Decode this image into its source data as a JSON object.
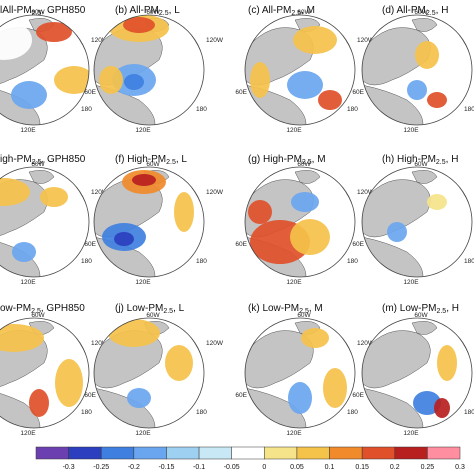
{
  "panels": [
    {
      "id": "a",
      "prefix": "",
      "group": "All",
      "suffix": ", GPH850",
      "shown_prefix": ""
    },
    {
      "id": "b",
      "prefix": "(b) ",
      "group": "All",
      "suffix": ", L"
    },
    {
      "id": "c",
      "prefix": "(c) ",
      "group": "All",
      "suffix": ", M"
    },
    {
      "id": "d",
      "prefix": "(d) ",
      "group": "All",
      "suffix": ", H"
    },
    {
      "id": "e",
      "prefix": "",
      "group": "igh",
      "suffix": ", GPH850"
    },
    {
      "id": "f",
      "prefix": "(f) ",
      "group": "High",
      "suffix": ", L"
    },
    {
      "id": "g",
      "prefix": "(g) ",
      "group": "High",
      "suffix": ", M"
    },
    {
      "id": "h",
      "prefix": "(h) ",
      "group": "High",
      "suffix": ", H"
    },
    {
      "id": "i",
      "prefix": "",
      "group": "ow",
      "suffix": ", GPH850"
    },
    {
      "id": "j",
      "prefix": "(j) ",
      "group": "Low",
      "suffix": ", L"
    },
    {
      "id": "k",
      "prefix": "(k) ",
      "group": "Low",
      "suffix": ", M"
    },
    {
      "id": "m",
      "prefix": "(m) ",
      "group": "Low",
      "suffix": ", H"
    }
  ],
  "pm_label": "PM",
  "pm_sub": "2.5",
  "lon_labels": {
    "top": "60W",
    "right": "120W",
    "bottom_right": "180",
    "left": "60E",
    "bottom": "120E"
  },
  "colorbar": {
    "ticks": [
      "-0.3",
      "-0.25",
      "-0.2",
      "-0.15",
      "-0.1",
      "-0.05",
      "0",
      "0.05",
      "0.1",
      "0.15",
      "0.2",
      "0.25",
      "0.3"
    ],
    "colors": [
      "#6c3fb0",
      "#2b3fbf",
      "#3f7fe0",
      "#6aa6ef",
      "#9ed0f2",
      "#c8e8f5",
      "#ffffff",
      "#f5e48a",
      "#f5c24a",
      "#f08a2a",
      "#e0502a",
      "#b8201f",
      "#ff8fa0"
    ]
  },
  "colors": {
    "land": "#c4c4c4",
    "ocean": "#ffffff",
    "coast": "#333333",
    "border": "#444444"
  }
}
